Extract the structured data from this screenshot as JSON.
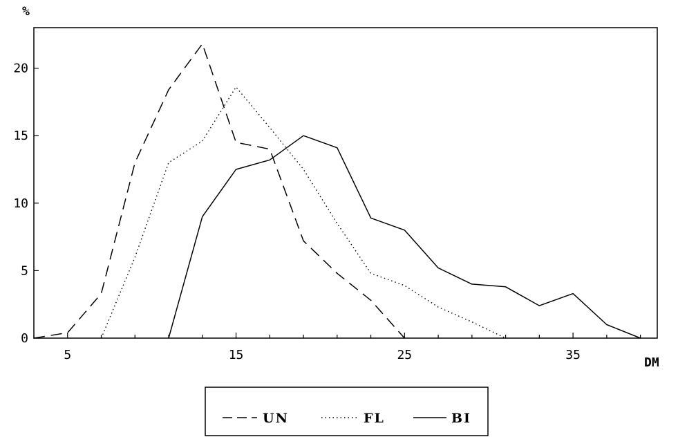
{
  "chart_data": {
    "type": "line",
    "ylabel": "%",
    "xlabel": "DM",
    "xlim": [
      3,
      40
    ],
    "ylim": [
      0,
      23
    ],
    "x_ticks": [
      5,
      15,
      25,
      35
    ],
    "y_ticks": [
      0,
      5,
      10,
      15,
      20
    ],
    "grid": false,
    "legend_position": "bottom-center",
    "series": [
      {
        "name": "UN",
        "style": "dashed",
        "color": "#000000",
        "points": [
          [
            3,
            0
          ],
          [
            5,
            0.4
          ],
          [
            7,
            3.3
          ],
          [
            9,
            13.0
          ],
          [
            11,
            18.4
          ],
          [
            13,
            21.8
          ],
          [
            15,
            14.5
          ],
          [
            17,
            14.0
          ],
          [
            19,
            7.2
          ],
          [
            21,
            4.8
          ],
          [
            23,
            2.8
          ],
          [
            25,
            0
          ]
        ]
      },
      {
        "name": "FL",
        "style": "dotted",
        "color": "#000000",
        "points": [
          [
            7,
            0
          ],
          [
            9,
            6.0
          ],
          [
            11,
            13.0
          ],
          [
            13,
            14.6
          ],
          [
            15,
            18.6
          ],
          [
            17,
            15.6
          ],
          [
            19,
            12.5
          ],
          [
            21,
            8.5
          ],
          [
            23,
            4.8
          ],
          [
            25,
            3.9
          ],
          [
            27,
            2.3
          ],
          [
            29,
            1.2
          ],
          [
            31,
            0
          ]
        ]
      },
      {
        "name": "BI",
        "style": "solid",
        "color": "#000000",
        "points": [
          [
            11,
            0
          ],
          [
            13,
            9.0
          ],
          [
            15,
            12.5
          ],
          [
            17,
            13.2
          ],
          [
            19,
            15.0
          ],
          [
            21,
            14.1
          ],
          [
            23,
            8.9
          ],
          [
            25,
            8.0
          ],
          [
            27,
            5.2
          ],
          [
            29,
            4.0
          ],
          [
            31,
            3.8
          ],
          [
            33,
            2.4
          ],
          [
            35,
            3.3
          ],
          [
            37,
            1.0
          ],
          [
            39,
            0
          ]
        ]
      }
    ]
  }
}
